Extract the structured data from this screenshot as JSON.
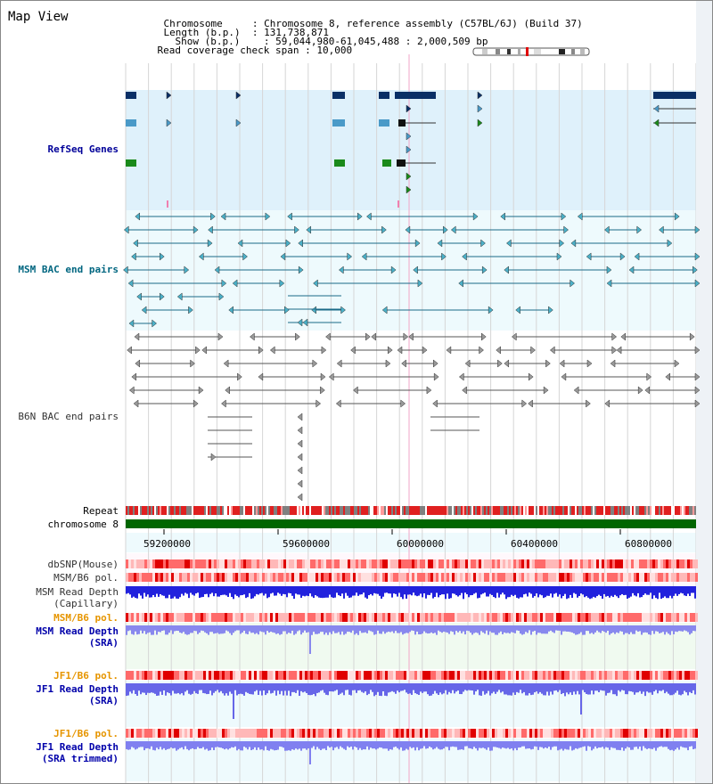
{
  "header": {
    "title": "Map View",
    "rows": [
      {
        "label": "Chromosome    ",
        "value": "Chromosome 8, reference assembly (C57BL/6J) (Build 37)"
      },
      {
        "label": "Length (b.p.) ",
        "value": "131,738,871"
      },
      {
        "label": "Show (b.p.)   ",
        "value": "59,044,980-61,045,488 : 2,000,509 bp"
      },
      {
        "label": "Read coverage check span",
        "value": "10,000"
      }
    ]
  },
  "tracks": {
    "refseq": "RefSeq Genes",
    "msm_bac": "MSM BAC end pairs",
    "b6n_bac": "B6N BAC end pairs",
    "repeat": "Repeat",
    "chromosome": "chromosome 8",
    "dbsnp": "dbSNP(Mouse)",
    "msm_b6_pol_1": "MSM/B6 pol.",
    "msm_depth_cap_1": "MSM Read Depth",
    "msm_depth_cap_2": "(Capillary)",
    "msm_b6_pol_2": "MSM/B6 pol.",
    "msm_depth_sra_1": "MSM Read Depth",
    "msm_depth_sra_2": "(SRA)",
    "jf1_pol_1": "JF1/B6 pol.",
    "jf1_depth_sra_1": "JF1 Read Depth",
    "jf1_depth_sra_2": "(SRA)",
    "jf1_pol_2": "JF1/B6 pol.",
    "jf1_depth_trim_1": "JF1 Read Depth",
    "jf1_depth_trim_2": "(SRA trimmed)"
  },
  "axis": {
    "ticks": [
      "59200000",
      "59600000",
      "60000000",
      "60400000",
      "60800000"
    ]
  },
  "colors": {
    "refseq_label": "#000099",
    "msm_label": "#006680",
    "b6n_label": "#333333",
    "jf1_label": "#0000aa",
    "orange_label": "#e69500",
    "chromosome_bar": "#006600"
  }
}
